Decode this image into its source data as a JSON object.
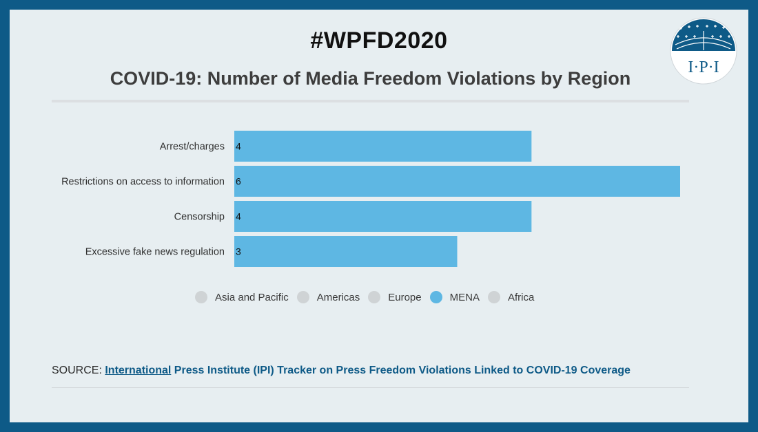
{
  "header": {
    "hashtag": "#WPFD2020",
    "title": "COVID-19: Number of Media Freedom Violations by Region"
  },
  "logo": {
    "text": "I·P·I",
    "icon": "ipi-globe-logo",
    "color": "#0e5a87"
  },
  "chart_data": {
    "type": "bar",
    "orientation": "horizontal",
    "categories": [
      "Arrest/charges",
      "Restrictions on access to information",
      "Censorship",
      "Excessive fake news regulation"
    ],
    "values": [
      4,
      6,
      4,
      3
    ],
    "data_labels": [
      "4",
      "6",
      "4",
      "3"
    ],
    "xlim": [
      0,
      6
    ],
    "grid": false,
    "bar_color": "#5eb7e3",
    "legend_position": "bottom",
    "legend": [
      {
        "label": "Asia and Pacific",
        "color": "#cfd3d5",
        "active": false
      },
      {
        "label": "Americas",
        "color": "#cfd3d5",
        "active": false
      },
      {
        "label": "Europe",
        "color": "#cfd3d5",
        "active": false
      },
      {
        "label": "MENA",
        "color": "#5eb7e3",
        "active": true
      },
      {
        "label": "Africa",
        "color": "#cfd3d5",
        "active": false
      }
    ]
  },
  "footer": {
    "source_prefix": "SOURCE: ",
    "source_link_1": "International",
    "source_link_2": " Press Institute (IPI) Tracker on Press Freedom Violations Linked to COVID-19 Coverage",
    "link_color": "#0e5a87"
  }
}
